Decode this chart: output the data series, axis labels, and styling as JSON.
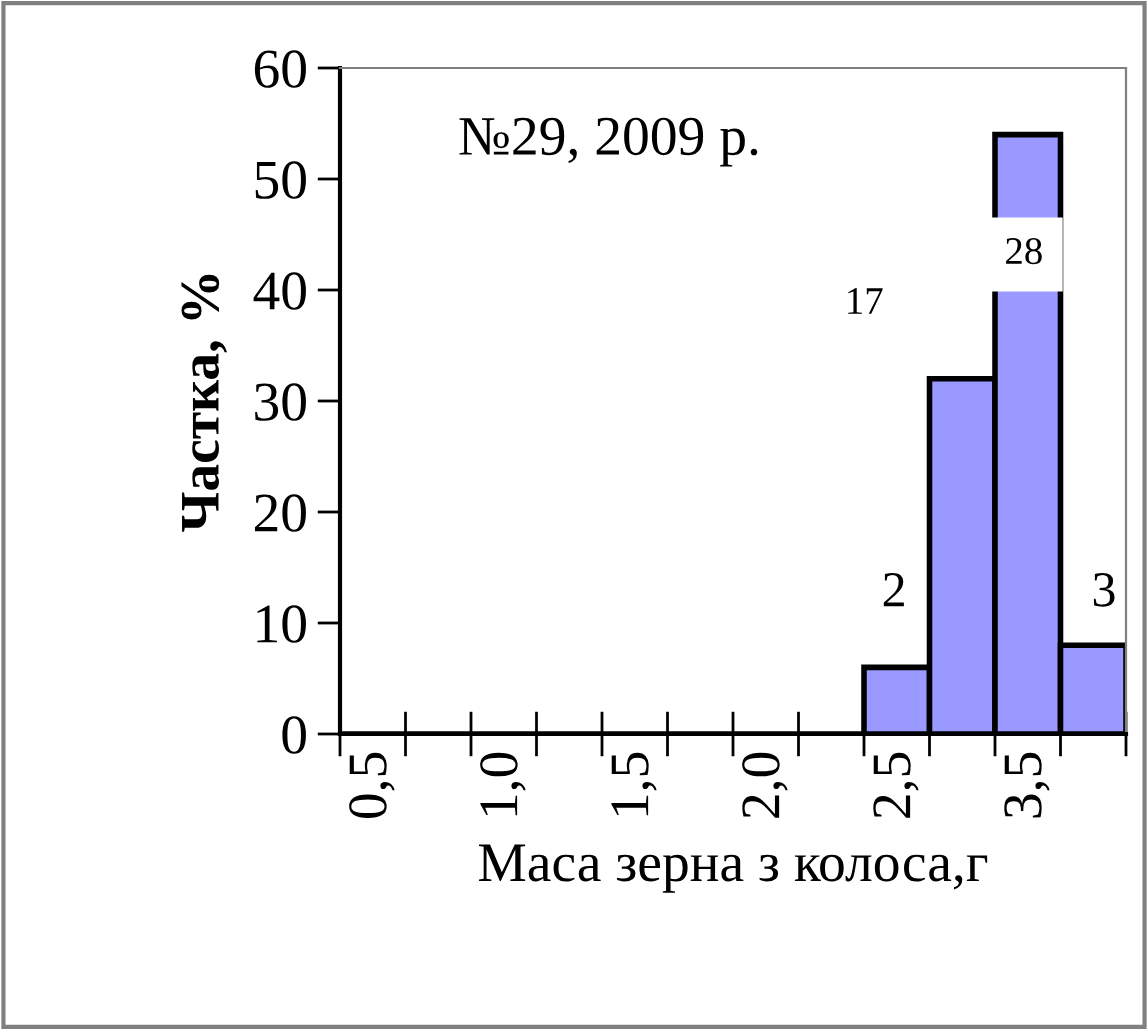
{
  "chart_data": {
    "type": "bar",
    "xlabel": "Маса зерна з колоса,г",
    "ylabel": "Частка, %",
    "annotations": [
      "№29, 2009 р.",
      "2",
      "17",
      "28",
      "3"
    ],
    "categories": [
      "0,5",
      null,
      "1,0",
      null,
      "1,5",
      null,
      "2,0",
      null,
      "2,5",
      null,
      "3,5",
      null
    ],
    "values": [
      0,
      0,
      0,
      0,
      0,
      0,
      0,
      0,
      6,
      32,
      54,
      8
    ],
    "color": "#9999ff",
    "ylim": [
      0,
      60
    ],
    "yticks": [
      0,
      10,
      20,
      30,
      40,
      50,
      60
    ],
    "grid": false,
    "legend": false
  }
}
